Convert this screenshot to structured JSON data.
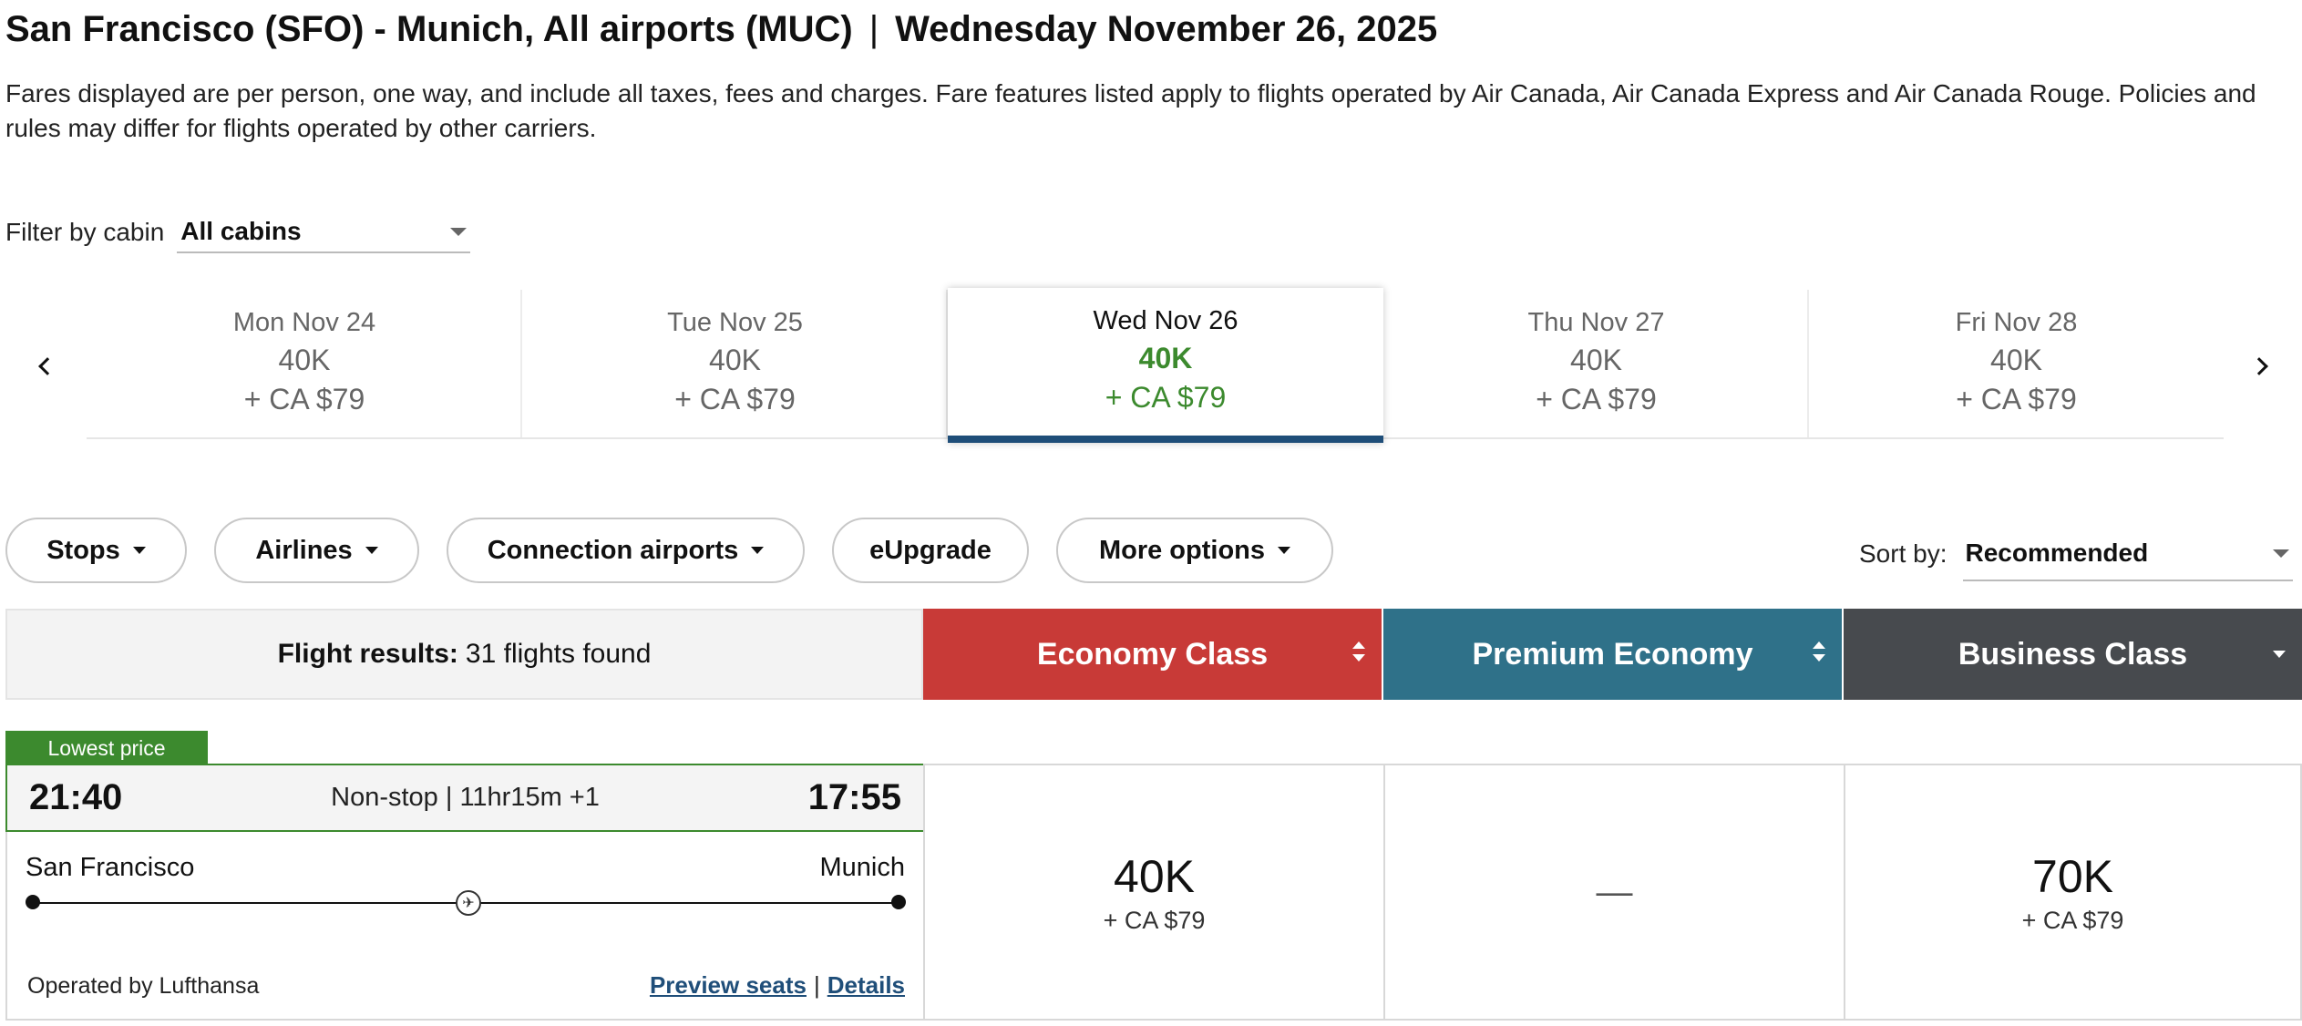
{
  "header": {
    "route": "San Francisco (SFO) - Munich, All airports (MUC)",
    "separator": "|",
    "date": "Wednesday November 26, 2025",
    "disclaimer": "Fares displayed are per person, one way, and include all taxes, fees and charges. Fare features listed apply to flights operated by Air Canada, Air Canada Express and Air Canada Rouge. Policies and rules may differ for flights operated by other carriers."
  },
  "filter": {
    "label": "Filter by cabin",
    "value": "All cabins"
  },
  "dates": [
    {
      "day": "Mon Nov 24",
      "points": "40K",
      "taxes": "+ CA $79",
      "selected": false
    },
    {
      "day": "Tue Nov 25",
      "points": "40K",
      "taxes": "+ CA $79",
      "selected": false
    },
    {
      "day": "Wed Nov 26",
      "points": "40K",
      "taxes": "+ CA $79",
      "selected": true
    },
    {
      "day": "Thu Nov 27",
      "points": "40K",
      "taxes": "+ CA $79",
      "selected": false
    },
    {
      "day": "Fri Nov 28",
      "points": "40K",
      "taxes": "+ CA $79",
      "selected": false
    }
  ],
  "filters": {
    "stops": "Stops",
    "airlines": "Airlines",
    "connection_airports": "Connection airports",
    "eupgrade": "eUpgrade",
    "more_options": "More options"
  },
  "sort": {
    "label": "Sort by:",
    "value": "Recommended"
  },
  "results": {
    "label": "Flight results:",
    "count": "31 flights found"
  },
  "cabins": {
    "economy": {
      "label": "Economy Class",
      "color": "#c83a37"
    },
    "premium": {
      "label": "Premium Economy",
      "color": "#2f7189"
    },
    "business": {
      "label": "Business Class",
      "color": "#474a4e"
    }
  },
  "flight": {
    "badge": "Lowest price",
    "departure": "21:40",
    "summary": "Non-stop | 11hr15m +1",
    "arrival": "17:55",
    "origin": "San Francisco",
    "destination": "Munich",
    "operated_by": "Operated by Lufthansa",
    "preview_seats": "Preview seats",
    "link_sep": "|",
    "details": "Details",
    "airline_icon": "lufthansa-crane-icon",
    "fares": {
      "economy": {
        "points": "40K",
        "taxes": "+ CA $79"
      },
      "premium": {
        "value": "—"
      },
      "business": {
        "points": "70K",
        "taxes": "+ CA $79"
      }
    }
  },
  "colors": {
    "green": "#3c8a2e",
    "selected_underline": "#1f4e79",
    "link": "#1f4e79"
  }
}
